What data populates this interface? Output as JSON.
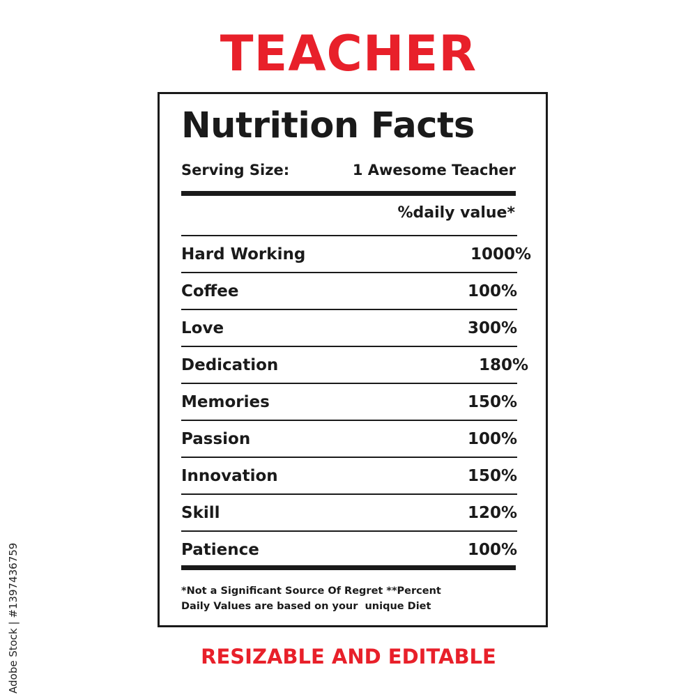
{
  "headline": "TEACHER",
  "label": {
    "title": "Nutrition Facts",
    "serving_size_label": "Serving Size:",
    "serving_size_value": "1 Awesome Teacher",
    "daily_value_header": "%daily value*",
    "rows": [
      {
        "name": "Hard Working",
        "value": "1000%"
      },
      {
        "name": "Coffee",
        "value": "100%"
      },
      {
        "name": "Love",
        "value": "300%"
      },
      {
        "name": "Dedication",
        "value": "180%"
      },
      {
        "name": "Memories",
        "value": "150%"
      },
      {
        "name": "Passion",
        "value": "100%"
      },
      {
        "name": "Innovation",
        "value": "150%"
      },
      {
        "name": "Skill",
        "value": "120%"
      },
      {
        "name": "Patience",
        "value": "100%"
      }
    ],
    "footnote_line1": "*Not a Significant Source Of Regret **Percent",
    "footnote_line2": "Daily Values are based on your  unique Diet"
  },
  "subheadline": "RESIZABLE AND EDITABLE",
  "watermark": "Adobe Stock | #1397436759",
  "colors": {
    "accent": "#e8202a",
    "ink": "#1a1a1a"
  }
}
